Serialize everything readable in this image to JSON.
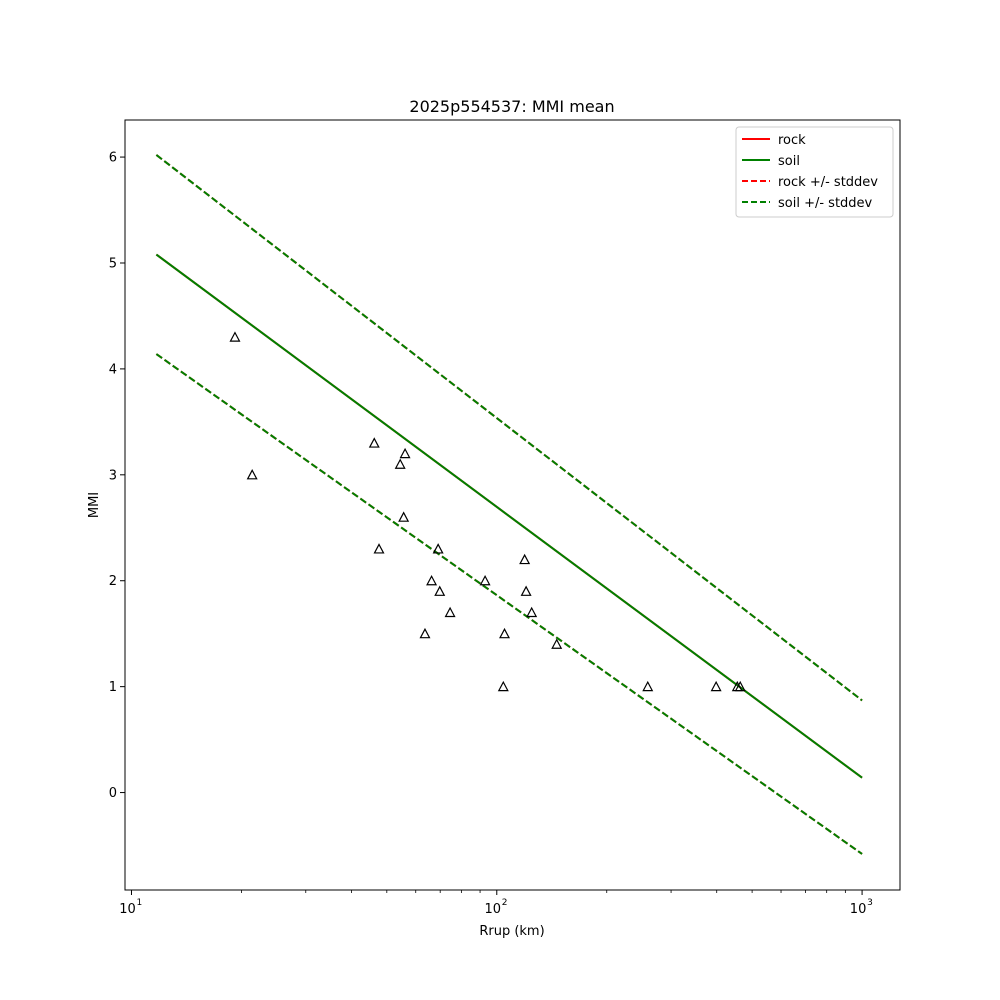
{
  "chart_data": {
    "type": "line",
    "title": "2025p554537: MMI mean",
    "xlabel": "Rrup (km)",
    "ylabel": "MMI",
    "xscale": "log",
    "xlim": [
      9.6,
      1270
    ],
    "ylim": [
      -0.92,
      6.35
    ],
    "x_ticks": [
      {
        "value": 10,
        "base": "10",
        "exp": "1"
      },
      {
        "value": 100,
        "base": "10",
        "exp": "2"
      },
      {
        "value": 1000,
        "base": "10",
        "exp": "3"
      }
    ],
    "y_ticks": [
      0,
      1,
      2,
      3,
      4,
      5,
      6
    ],
    "legend_position": "top-right",
    "legend": [
      {
        "label": "rock",
        "color": "#ff0000",
        "style": "solid"
      },
      {
        "label": "soil",
        "color": "#008000",
        "style": "solid"
      },
      {
        "label": "rock +/- stddev",
        "color": "#ff0000",
        "style": "dashed"
      },
      {
        "label": "soil +/- stddev",
        "color": "#008000",
        "style": "dashed"
      }
    ],
    "series": [
      {
        "name": "rock",
        "color": "#ff0000",
        "style": "solid",
        "x": [
          11.7,
          1000
        ],
        "y": [
          5.08,
          0.14
        ]
      },
      {
        "name": "soil",
        "color": "#008000",
        "style": "solid",
        "x": [
          11.7,
          1000
        ],
        "y": [
          5.08,
          0.14
        ]
      },
      {
        "name": "rock +/- stddev",
        "color": "#ff0000",
        "style": "dashed",
        "x": [
          11.7,
          1000
        ],
        "y": [
          6.02,
          0.87
        ]
      },
      {
        "name": "rock +/- stddev",
        "color": "#ff0000",
        "style": "dashed",
        "x": [
          11.7,
          1000
        ],
        "y": [
          4.14,
          -0.58
        ]
      },
      {
        "name": "soil +/- stddev",
        "color": "#008000",
        "style": "dashed",
        "x": [
          11.7,
          1000
        ],
        "y": [
          6.02,
          0.87
        ]
      },
      {
        "name": "soil +/- stddev",
        "color": "#008000",
        "style": "dashed",
        "x": [
          11.7,
          1000
        ],
        "y": [
          4.14,
          -0.58
        ]
      }
    ],
    "observations": {
      "marker": "triangle",
      "x": [
        19.2,
        21.4,
        46.2,
        47.6,
        54.4,
        55.6,
        56.1,
        63.6,
        66.3,
        69.1,
        69.8,
        74.5,
        92.9,
        104.2,
        105.0,
        119.2,
        120.3,
        124.6,
        145.9,
        259.0,
        398.5,
        455.4,
        463.9
      ],
      "y": [
        4.3,
        3.0,
        3.3,
        2.3,
        3.1,
        2.6,
        3.2,
        1.5,
        2.0,
        2.3,
        1.9,
        1.7,
        2.0,
        1.0,
        1.5,
        2.2,
        1.9,
        1.7,
        1.4,
        1.0,
        1.0,
        1.0,
        1.0
      ]
    }
  }
}
